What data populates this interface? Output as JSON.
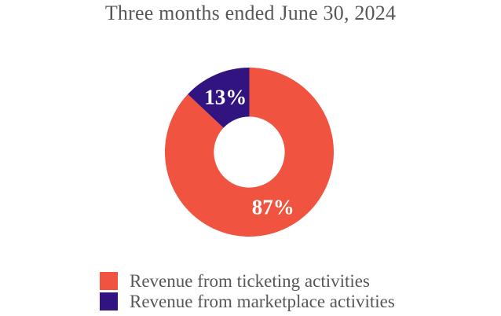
{
  "chart_data": {
    "type": "pie",
    "subtype": "donut",
    "title": "Three months ended June 30, 2024",
    "slices": [
      {
        "label": "Revenue from ticketing activities",
        "value": 87,
        "display": "87%",
        "color": "#f0533f"
      },
      {
        "label": "Revenue from marketplace activities",
        "value": 13,
        "display": "13%",
        "color": "#321480"
      }
    ],
    "start_angle_deg": 0,
    "direction": "clockwise",
    "donut_hole_ratio": 0.42,
    "value_label_color": "#ffffff",
    "legend_position": "bottom-left",
    "title_color": "#575757",
    "background_color": "#ffffff"
  }
}
